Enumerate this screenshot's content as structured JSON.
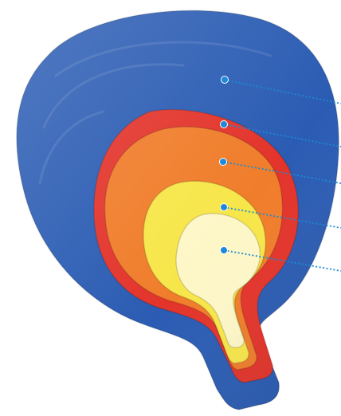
{
  "diagram": {
    "layers": [
      {
        "id": "blue-outer",
        "color": "#2b5cb3"
      },
      {
        "id": "red",
        "color": "#e3342b"
      },
      {
        "id": "orange",
        "color": "#f07d2b"
      },
      {
        "id": "yellow",
        "color": "#f7e64a"
      },
      {
        "id": "pale-yellow-inner",
        "color": "#fdf7c8"
      }
    ],
    "leader_line_color": "#1a8bd6",
    "leader_dot_color": "#1e88d9"
  }
}
